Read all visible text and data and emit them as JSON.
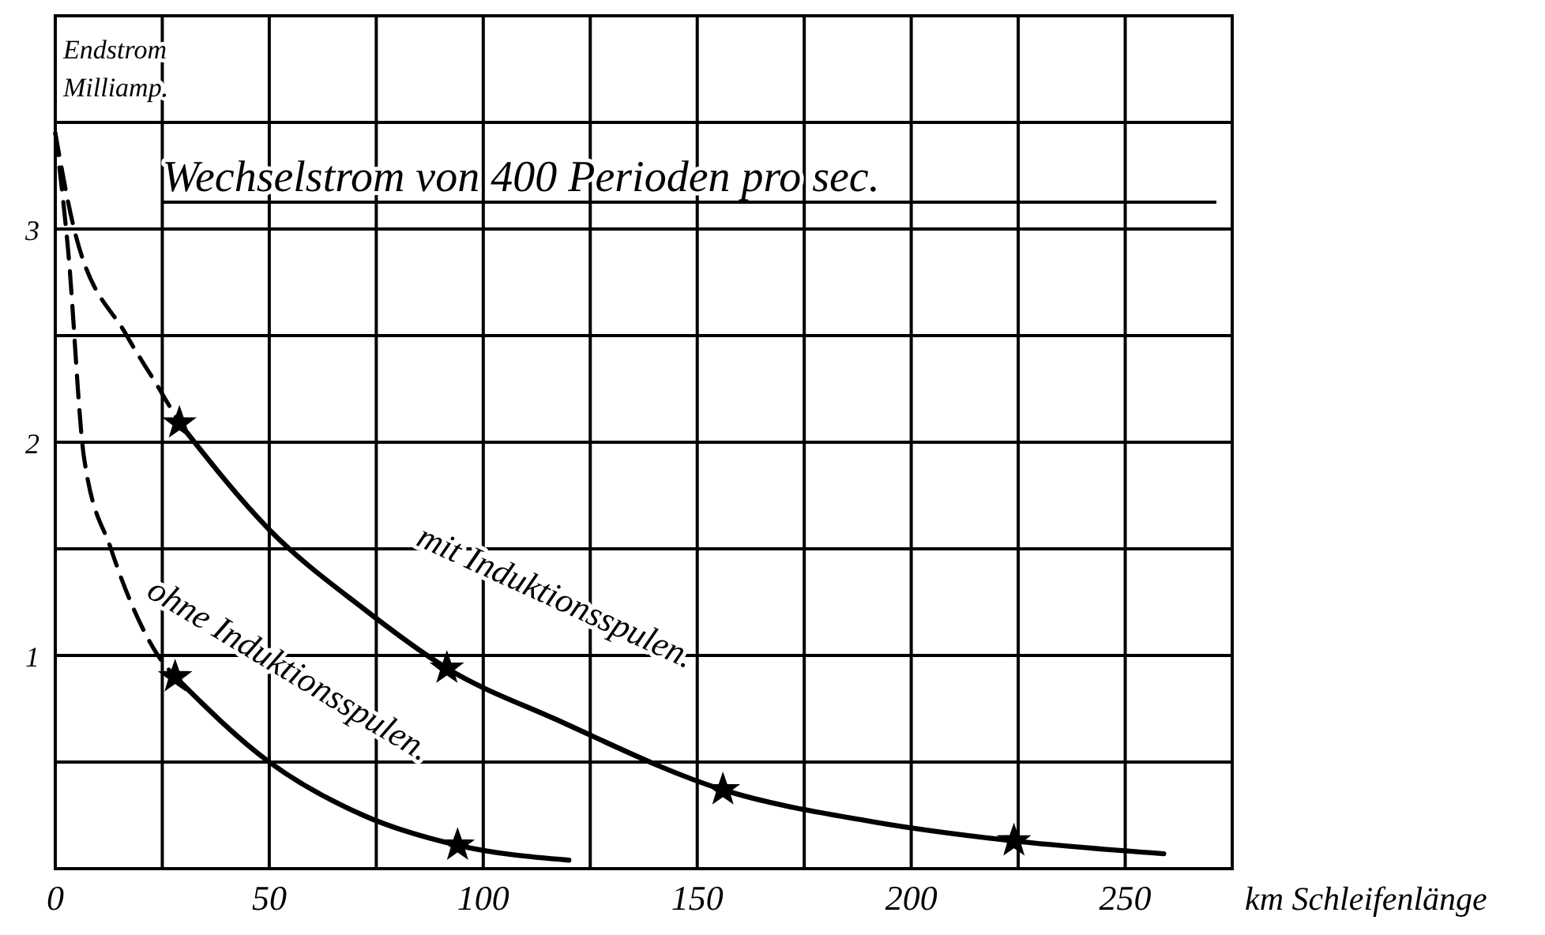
{
  "chart_data": {
    "type": "line",
    "title": "Wechselstrom von 400 Perioden pro sec.",
    "xlabel": "km Schleifenlänge",
    "ylabel": "Endstrom\nMilliamp.",
    "xlim": [
      0,
      275
    ],
    "xticks": [
      0,
      {
        "value": 25,
        "label": null
      },
      50,
      {
        "value": 75,
        "label": null
      },
      100,
      {
        "value": 125,
        "label": null
      },
      150,
      {
        "value": 175,
        "label": null
      },
      200,
      {
        "value": 225,
        "label": null
      },
      250,
      {
        "value": 275,
        "label": null
      }
    ],
    "ylim": [
      0,
      4
    ],
    "yticks": [
      {
        "value": 0.5,
        "label": null
      },
      1,
      {
        "value": 1.5,
        "label": null
      },
      2,
      {
        "value": 2.5,
        "label": null
      },
      3,
      {
        "value": 3.5,
        "label": null
      }
    ],
    "grid": true,
    "series": [
      {
        "line_style": "dashed",
        "marker": "none",
        "color": "#000000",
        "x": [
          0,
          4.4,
          16.7,
          24,
          29
        ],
        "values": [
          3.45,
          3.0,
          2.5,
          2.26,
          2.09
        ]
      },
      {
        "line_style": "solid",
        "marker": "none",
        "color": "#000000",
        "x": [
          29,
          50,
          72,
          91.5,
          117,
          156,
          191,
          224,
          259
        ],
        "values": [
          2.09,
          1.59,
          1.22,
          0.94,
          0.7,
          0.37,
          0.22,
          0.13,
          0.07
        ]
      },
      {
        "line_style": "dashed",
        "marker": "none",
        "color": "#000000",
        "x": [
          0,
          3,
          6.7,
          13,
          24,
          28
        ],
        "values": [
          3.45,
          2.9,
          1.93,
          1.5,
          1.0,
          0.9
        ]
      },
      {
        "line_style": "solid",
        "marker": "none",
        "color": "#000000",
        "x": [
          28,
          50,
          72,
          94,
          120
        ],
        "values": [
          0.9,
          0.5,
          0.25,
          0.11,
          0.04
        ]
      },
      {
        "type": "scatter",
        "marker": "star",
        "color": "#000000",
        "x": [
          29,
          91.5,
          156,
          224,
          28,
          94
        ],
        "values": [
          2.09,
          0.94,
          0.37,
          0.13,
          0.9,
          0.11
        ]
      }
    ],
    "annotations": [
      "mit Induktionsspulen.",
      "ohne Induktionsspulen."
    ]
  }
}
